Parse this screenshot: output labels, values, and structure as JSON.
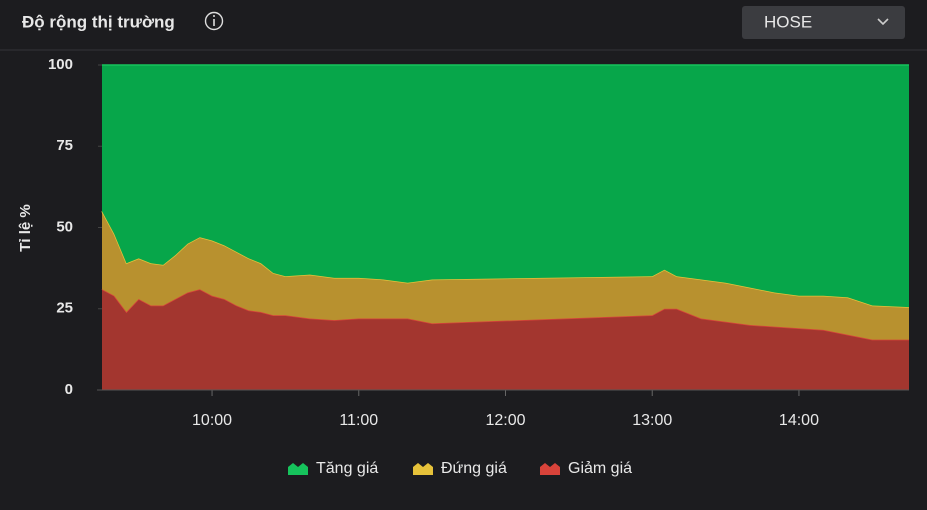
{
  "header": {
    "title": "Độ rộng thị trường",
    "exchange": "HOSE"
  },
  "chart_data": {
    "type": "stacked-area",
    "y_label": "Tỉ lệ %",
    "x": [
      555,
      560,
      565,
      570,
      575,
      580,
      585,
      590,
      595,
      600,
      605,
      610,
      615,
      620,
      625,
      630,
      640,
      650,
      660,
      670,
      680,
      690,
      780,
      785,
      790,
      800,
      810,
      820,
      830,
      840,
      850,
      860,
      870,
      885
    ],
    "xlim": [
      555,
      885
    ],
    "xticks": [
      {
        "value": 600,
        "label": "10:00"
      },
      {
        "value": 660,
        "label": "11:00"
      },
      {
        "value": 720,
        "label": "12:00"
      },
      {
        "value": 780,
        "label": "13:00"
      },
      {
        "value": 840,
        "label": "14:00"
      }
    ],
    "ylim": [
      0,
      100
    ],
    "yticks": [
      0,
      25,
      50,
      75,
      100
    ],
    "grid": false,
    "legend": "bottom",
    "series": [
      {
        "name": "Tăng giá",
        "color": "#07a64a",
        "line": "#16c35c",
        "values": [
          45,
          52,
          61,
          59.5,
          61,
          61.5,
          58.5,
          55,
          53,
          54,
          55.5,
          57.5,
          59.5,
          61,
          64,
          65,
          64.5,
          65.5,
          65.5,
          66,
          67,
          66,
          65,
          63,
          65,
          66,
          67,
          68.5,
          70,
          71,
          71,
          71.5,
          74,
          74.5
        ]
      },
      {
        "name": "Đứng giá",
        "color": "#b8912f",
        "line": "#e6c23a",
        "values": [
          24,
          19,
          15,
          12.5,
          13,
          12.5,
          13.5,
          15,
          16,
          17,
          16.5,
          16.5,
          16,
          15,
          13,
          12,
          13.5,
          13,
          12.5,
          12,
          11,
          13.5,
          12,
          12,
          10,
          12,
          12,
          11.5,
          10.5,
          10,
          10.5,
          11.5,
          10.5,
          10
        ]
      },
      {
        "name": "Giảm giá",
        "color": "#a3362f",
        "line": "#d8433a",
        "values": [
          31,
          29,
          24,
          28,
          26,
          26,
          28,
          30,
          31,
          29,
          28,
          26,
          24.5,
          24,
          23,
          23,
          22,
          21.5,
          22,
          22,
          22,
          20.5,
          23,
          25,
          25,
          22,
          21,
          20,
          19.5,
          19,
          18.5,
          17,
          15.5,
          15.5
        ]
      }
    ]
  }
}
